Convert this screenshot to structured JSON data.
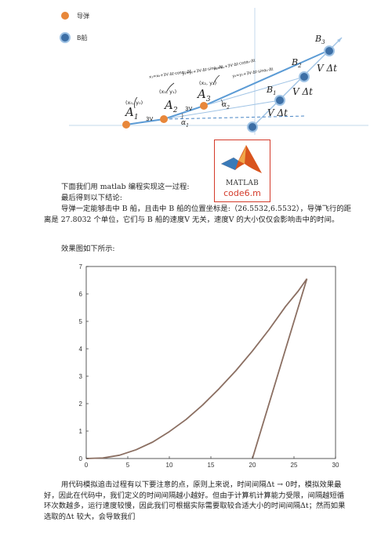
{
  "diagram": {
    "legend": [
      {
        "label": "导弹",
        "color": "#e8873a"
      },
      {
        "label": "B船",
        "color": "#3d6fa6"
      }
    ],
    "labels": {
      "A1": "A",
      "A1_sub": "1",
      "A2": "A",
      "A2_sub": "2",
      "A3": "A",
      "A3_sub": "3",
      "B1": "B",
      "B1_sub": "1",
      "B2": "B",
      "B2_sub": "2",
      "B3": "B",
      "B3_sub": "3",
      "vdt1": "V Δt",
      "vdt2": "V Δt",
      "vdt3": "V Δt",
      "alpha1": "α",
      "alpha1_sub": "1",
      "alpha2": "α",
      "alpha2_sub": "2",
      "three_v_1": "3V",
      "three_v_2": "3V",
      "coord1": "(x₀, y₀)",
      "coord2": "(x₁, y₁)",
      "coord3": "(x₂, y₂)",
      "hw1": "x₁=x₀+3V·Δt·cosα₁·Δt",
      "hw2": "y₁=y₀+3V·Δt·sinα₁·Δt",
      "hw3": "x₂=x₁+3V·Δt·cosα₂·Δt",
      "hw4": "y₂=y₁+3V·Δt·sinα₂·Δt"
    },
    "logo": {
      "title": "MATLAB",
      "subtitle": "code6.m"
    }
  },
  "text": {
    "p1": "下面我们用 matlab 编程实现这一过程:",
    "p2": "最后得到以下结论:",
    "p3": "导弹一定能够击中 B 船，且击中 B 船的位置坐标是:（26.5532,6.5532），导弹飞行的距离是 27.8032 个单位，它们与 B 船的速度V 无关，速度V 的大小仅仅会影响击中的时间。",
    "p4": "效果图如下所示:",
    "p5": "用代码模拟追击过程有以下要注意的点，原则上来说，时间间隔Δt → 0时，模拟效果最好，因此在代码中，我们定义的时间间隔越小越好。但由于计算机计算能力受限，间隔越短循环次数越多，运行速度较慢，因此我们可根据实际需要取较合适大小的时间间隔Δt；然而如果选取的Δt 较大，会导致我们"
  },
  "chart_data": {
    "type": "line",
    "xlim": [
      0,
      30
    ],
    "ylim": [
      0,
      7
    ],
    "xticks": [
      0,
      5,
      10,
      15,
      20,
      25,
      30
    ],
    "yticks": [
      0,
      1,
      2,
      3,
      4,
      5,
      6,
      7
    ],
    "grid": true,
    "series": [
      {
        "color": "#8b6f62",
        "points": [
          [
            0,
            0
          ],
          [
            2,
            0.02
          ],
          [
            4,
            0.12
          ],
          [
            6,
            0.32
          ],
          [
            8,
            0.6
          ],
          [
            10,
            0.98
          ],
          [
            12,
            1.42
          ],
          [
            14,
            1.95
          ],
          [
            16,
            2.55
          ],
          [
            18,
            3.2
          ],
          [
            20,
            3.92
          ],
          [
            22,
            4.7
          ],
          [
            24,
            5.55
          ],
          [
            25.5,
            6.1
          ],
          [
            26.5532,
            6.5532
          ]
        ]
      },
      {
        "color": "#8b6f62",
        "points": [
          [
            20,
            0
          ],
          [
            26.5532,
            6.5532
          ]
        ]
      }
    ],
    "intercept": [
      26.5532,
      6.5532
    ]
  }
}
